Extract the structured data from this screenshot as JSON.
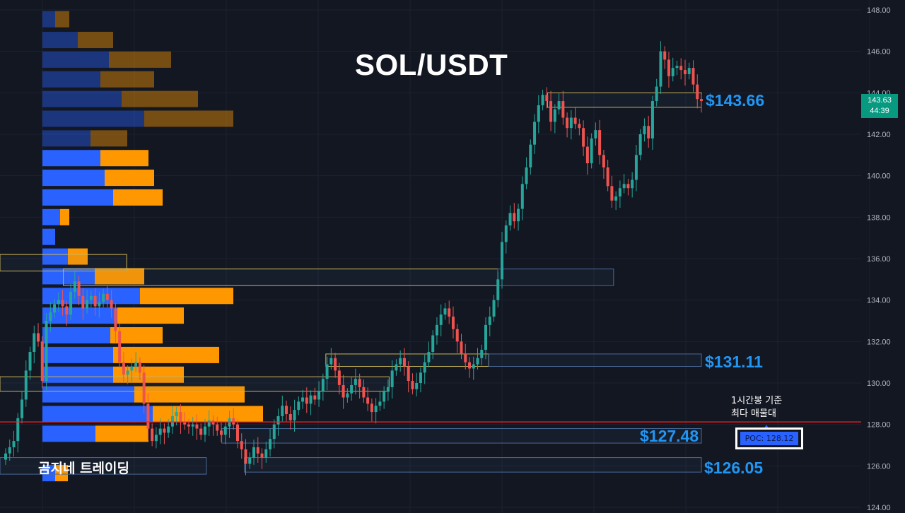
{
  "chart_data": {
    "type": "candlestick",
    "title": "SOL/USDT",
    "ylim": [
      124,
      148.5
    ],
    "y_ticks": [
      "124.00",
      "126.00",
      "128.00",
      "130.00",
      "132.00",
      "134.00",
      "136.00",
      "138.00",
      "140.00",
      "142.00",
      "144.00",
      "146.00",
      "148.00"
    ],
    "current_price": "143.63",
    "countdown": "44:39",
    "poc_line": 128.12,
    "poc_label": "POC: 128.12",
    "annotation": [
      "1시간봉 기준",
      "최다 매물대"
    ],
    "watermark": "곰지네 트레이딩",
    "level_labels": [
      {
        "text": "$143.66",
        "price": 143.66
      },
      {
        "text": "$131.11",
        "price": 131.11
      },
      {
        "text": "$127.48",
        "price": 127.48
      },
      {
        "text": "$126.05",
        "price": 126.05
      }
    ],
    "zones": [
      {
        "low": 143.3,
        "high": 144.0,
        "start": 0.605,
        "end": 0.775,
        "color": "#c9b458"
      },
      {
        "low": 135.4,
        "high": 136.2,
        "start": 0.0,
        "end": 0.14,
        "color": "#c9b458"
      },
      {
        "low": 134.7,
        "high": 135.5,
        "start": 0.07,
        "end": 0.55,
        "color": "#c9b458"
      },
      {
        "low": 134.7,
        "high": 135.5,
        "start": 0.55,
        "end": 0.678,
        "color": "#4a6a9a"
      },
      {
        "low": 130.8,
        "high": 131.4,
        "start": 0.36,
        "end": 0.54,
        "color": "#c9b458"
      },
      {
        "low": 130.8,
        "high": 131.4,
        "start": 0.54,
        "end": 0.775,
        "color": "#4a6a9a"
      },
      {
        "low": 129.6,
        "high": 130.3,
        "start": 0.0,
        "end": 0.43,
        "color": "#c9b458"
      },
      {
        "low": 127.1,
        "high": 127.8,
        "start": 0.245,
        "end": 0.775,
        "color": "#4a6a9a"
      },
      {
        "low": 125.6,
        "high": 126.4,
        "start": 0.0,
        "end": 0.228,
        "color": "#4a6a9a"
      },
      {
        "low": 125.7,
        "high": 126.4,
        "start": 0.27,
        "end": 0.775,
        "color": "#4a6a9a"
      }
    ],
    "volume_profile": [
      {
        "price": 147.55,
        "up": 18,
        "down": 20,
        "past": true
      },
      {
        "price": 146.55,
        "up": 50,
        "down": 50,
        "past": true
      },
      {
        "price": 145.6,
        "up": 94,
        "down": 88,
        "past": true
      },
      {
        "price": 144.65,
        "up": 82,
        "down": 76,
        "past": true
      },
      {
        "price": 143.7,
        "up": 112,
        "down": 108,
        "past": true
      },
      {
        "price": 142.75,
        "up": 144,
        "down": 126,
        "past": true
      },
      {
        "price": 141.8,
        "up": 68,
        "down": 52,
        "past": true
      },
      {
        "price": 140.85,
        "up": 82,
        "down": 68
      },
      {
        "price": 139.9,
        "up": 88,
        "down": 70
      },
      {
        "price": 138.95,
        "up": 100,
        "down": 70
      },
      {
        "price": 138.0,
        "up": 25,
        "down": 13
      },
      {
        "price": 137.05,
        "up": 18,
        "down": 0
      },
      {
        "price": 136.1,
        "up": 36,
        "down": 28
      },
      {
        "price": 135.15,
        "up": 74,
        "down": 70
      },
      {
        "price": 134.2,
        "up": 138,
        "down": 132
      },
      {
        "price": 133.25,
        "up": 106,
        "down": 94
      },
      {
        "price": 132.3,
        "up": 96,
        "down": 74
      },
      {
        "price": 131.35,
        "up": 100,
        "down": 150
      },
      {
        "price": 130.4,
        "up": 100,
        "down": 100
      },
      {
        "price": 129.45,
        "up": 130,
        "down": 156
      },
      {
        "price": 128.5,
        "up": 156,
        "down": 156
      },
      {
        "price": 127.55,
        "up": 75,
        "down": 75
      },
      {
        "price": 126.6,
        "up": 0,
        "down": 0
      },
      {
        "price": 125.65,
        "up": 18,
        "down": 18
      }
    ],
    "candles_close": [
      126.6,
      126.9,
      127.2,
      128.3,
      129.2,
      130.6,
      131.5,
      132.4,
      132.0,
      130.1,
      133.0,
      133.4,
      133.8,
      134.0,
      133.7,
      133.3,
      134.4,
      134.9,
      134.2,
      133.6,
      134.0,
      134.2,
      133.7,
      133.9,
      134.3,
      134.0,
      133.6,
      132.5,
      131.0,
      130.4,
      130.6,
      130.8,
      131.0,
      130.5,
      129.0,
      127.8,
      127.2,
      127.5,
      127.8,
      127.6,
      127.9,
      128.4,
      128.6,
      128.1,
      128.0,
      127.9,
      128.0,
      127.8,
      127.5,
      127.9,
      128.2,
      128.0,
      127.7,
      127.5,
      127.9,
      128.3,
      128.0,
      127.2,
      126.8,
      126.1,
      126.4,
      126.9,
      126.6,
      126.4,
      126.8,
      127.3,
      128.0,
      128.4,
      128.9,
      128.5,
      128.2,
      128.7,
      129.1,
      129.3,
      129.0,
      129.4,
      129.2,
      129.6,
      130.2,
      130.9,
      131.2,
      130.6,
      129.9,
      129.3,
      129.5,
      129.9,
      130.2,
      129.8,
      129.3,
      129.0,
      128.6,
      128.9,
      129.1,
      129.6,
      129.8,
      130.6,
      130.9,
      131.2,
      130.8,
      130.1,
      129.7,
      130.0,
      130.5,
      131.0,
      131.5,
      132.3,
      132.8,
      133.3,
      133.6,
      133.2,
      132.6,
      132.0,
      131.4,
      131.0,
      130.7,
      130.9,
      131.2,
      131.6,
      132.8,
      133.2,
      134.0,
      135.0,
      136.8,
      137.6,
      138.2,
      137.8,
      138.4,
      139.6,
      140.4,
      141.5,
      142.6,
      143.4,
      143.9,
      143.6,
      142.6,
      143.2,
      143.6,
      142.8,
      142.3,
      142.8,
      142.5,
      142.3,
      141.4,
      140.6,
      141.8,
      142.2,
      141.0,
      140.4,
      139.5,
      138.8,
      139.0,
      139.4,
      139.6,
      139.4,
      139.8,
      141.0,
      142.0,
      142.4,
      141.8,
      143.6,
      144.3,
      146.0,
      145.6,
      144.8,
      145.2,
      145.3,
      145.1,
      144.9,
      145.2,
      144.4,
      143.7,
      143.6
    ],
    "volume": [
      0,
      0,
      0,
      0,
      0,
      0,
      0,
      0,
      0,
      0,
      0,
      0,
      0,
      0,
      0,
      0,
      0,
      0,
      0,
      0,
      0,
      0,
      0,
      0,
      0,
      0,
      0,
      0,
      0,
      0,
      0,
      0,
      0,
      0,
      0,
      0,
      0,
      0,
      0,
      0,
      0,
      0,
      0,
      0,
      0,
      0,
      0,
      0,
      0,
      0,
      0,
      0,
      0,
      0,
      0,
      0,
      0,
      0,
      0,
      0,
      0,
      0,
      0,
      0,
      0,
      0,
      0,
      0,
      0,
      0,
      0,
      0,
      0,
      0,
      0,
      0,
      0,
      0,
      0,
      0,
      0,
      0,
      0,
      0,
      0,
      0,
      0,
      0,
      0,
      0,
      0,
      0,
      0,
      0,
      0,
      0,
      0,
      0,
      0,
      0,
      0,
      0,
      0,
      0,
      0,
      0,
      0,
      0,
      0,
      0,
      0,
      0,
      0,
      0,
      0,
      0,
      0,
      0,
      0,
      0,
      0,
      0,
      0,
      0,
      0,
      0,
      0,
      0,
      0,
      0,
      0,
      0,
      0,
      0,
      0,
      0,
      0,
      0,
      0,
      0,
      0,
      0,
      0,
      0,
      0,
      0,
      0,
      0,
      0,
      0,
      0,
      0,
      0,
      0,
      0,
      0,
      0,
      0,
      0,
      0,
      0,
      0,
      0,
      0,
      0,
      0,
      0,
      0,
      0,
      0,
      0
    ]
  },
  "colors": {
    "up": "#26a69a",
    "down": "#ef5350",
    "profile_up": "#2962ff",
    "profile_down": "#ff9800",
    "poc": "#ff1f1f",
    "grid": "#1e2230",
    "axis_text": "#b2b5be"
  }
}
